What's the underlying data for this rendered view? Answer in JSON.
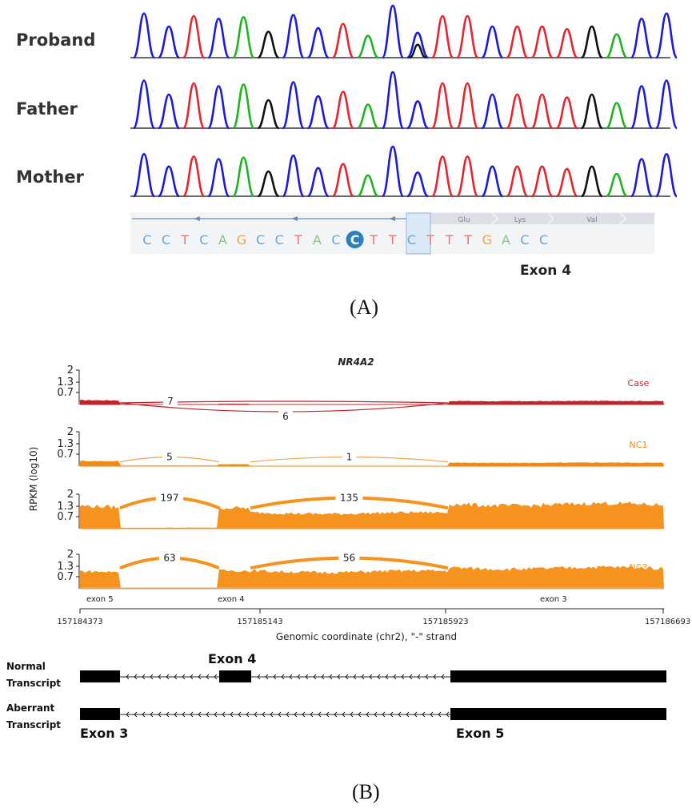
{
  "panel_a": {
    "label": "(A)",
    "samples": [
      "Proband",
      "Father",
      "Mother"
    ],
    "trace_colors": {
      "A": "#1fb521",
      "C": "#1a1ae0",
      "G": "#111111",
      "T": "#e8242c"
    },
    "peaks": [
      {
        "base": "C",
        "h": 0.85
      },
      {
        "base": "C",
        "h": 0.6
      },
      {
        "base": "T",
        "h": 0.8
      },
      {
        "base": "C",
        "h": 0.75
      },
      {
        "base": "A",
        "h": 0.78
      },
      {
        "base": "G",
        "h": 0.5
      },
      {
        "base": "C",
        "h": 0.82
      },
      {
        "base": "C",
        "h": 0.57
      },
      {
        "base": "T",
        "h": 0.65
      },
      {
        "base": "A",
        "h": 0.42
      },
      {
        "base": "C",
        "h": 1.0
      },
      {
        "base": "C",
        "h": 0.48
      },
      {
        "base": "T",
        "h": 0.8
      },
      {
        "base": "T",
        "h": 0.8
      },
      {
        "base": "C",
        "h": 0.6
      },
      {
        "base": "T",
        "h": 0.6
      },
      {
        "base": "T",
        "h": 0.6
      },
      {
        "base": "T",
        "h": 0.55
      },
      {
        "base": "G",
        "h": 0.6
      },
      {
        "base": "A",
        "h": 0.45
      },
      {
        "base": "C",
        "h": 0.75
      },
      {
        "base": "C",
        "h": 0.85
      }
    ],
    "het_peak_index": 11,
    "het_secondary_base": "G",
    "sequence": [
      "C",
      "C",
      "T",
      "C",
      "A",
      "G",
      "C",
      "C",
      "T",
      "A",
      "C",
      "C",
      "T",
      "T",
      "C",
      "T",
      "T",
      "T",
      "G",
      "A",
      "C",
      "C"
    ],
    "highlight_index": 11,
    "base_colors": {
      "A": "#83c98a",
      "C": "#6aa5d2",
      "G": "#f0a44a",
      "T": "#e27a7a"
    },
    "amino_acids": [
      "V",
      "Glu",
      "Lys",
      "Val"
    ],
    "exon_label": "Exon 4"
  },
  "panel_b": {
    "label": "(B)",
    "gene": "NR4A2",
    "ylabel": "RPKM (log10)",
    "yticks": [
      "2",
      "1.3",
      "0.7"
    ],
    "xticks": [
      "157184373",
      "157185143",
      "157185923",
      "157186693"
    ],
    "xlabel": "Genomic coordinate (chr2), \"-\" strand",
    "exon_track_labels": [
      "exon 5",
      "exon 4",
      "exon 3"
    ],
    "chart_data": {
      "type": "area",
      "title": "NR4A2",
      "xlabel": "Genomic coordinate (chr2), \"-\" strand",
      "ylabel": "RPKM (log10)",
      "xlim": [
        157184373,
        157186693
      ],
      "ylim": [
        0,
        2
      ],
      "series": [
        {
          "name": "Case",
          "color": "#c0242b",
          "levels": [
            0.25,
            0.05,
            0.05,
            0.2
          ],
          "junctions": [
            {
              "count": "7",
              "side": "top"
            },
            {
              "count": "6",
              "side": "bottom"
            }
          ]
        },
        {
          "name": "NC1",
          "color": "#ee8a16",
          "levels": [
            0.3,
            0.12,
            0.08,
            0.2
          ],
          "junctions": [
            {
              "count": "5",
              "side": "top"
            },
            {
              "count": "1",
              "side": "top"
            }
          ]
        },
        {
          "name": "NC2",
          "color": "#f6921e",
          "levels": [
            1.3,
            1.15,
            0.9,
            1.4
          ],
          "junctions": [
            {
              "count": "197",
              "side": "top"
            },
            {
              "count": "135",
              "side": "top"
            }
          ]
        },
        {
          "name": "NC3",
          "color": "#f6921e",
          "levels": [
            1.0,
            1.0,
            1.0,
            1.2
          ],
          "junctions": [
            {
              "count": "63",
              "side": "top"
            },
            {
              "count": "56",
              "side": "top"
            }
          ]
        }
      ]
    },
    "transcripts": [
      {
        "label_line1": "Normal",
        "label_line2": "Transcript"
      },
      {
        "label_line1": "Aberrant",
        "label_line2": "Transcript"
      }
    ],
    "transcript_exon_labels": {
      "exon4": "Exon 4",
      "exon3": "Exon 3",
      "exon5": "Exon 5"
    }
  }
}
